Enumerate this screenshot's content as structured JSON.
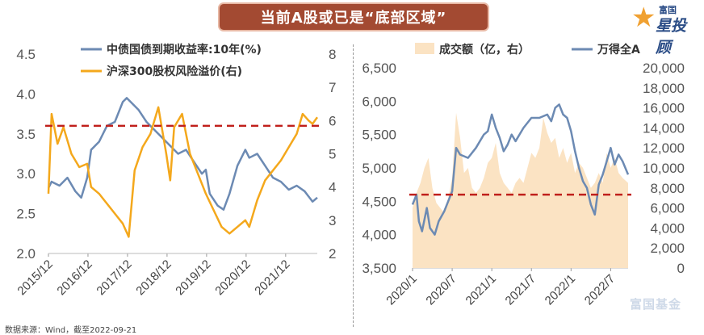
{
  "title": "当前A股或已是“底部区域”",
  "logo": {
    "top": "富国",
    "main": "星投顾"
  },
  "source": "数据来源：Wind，截至2022-09-21",
  "watermark": "富国基金",
  "colors": {
    "blue": "#6c8ab3",
    "orange": "#f4a81c",
    "volume": "#fbe3c3",
    "red_dash": "#c0201c",
    "banner": "#a34a32"
  },
  "chart_data": [
    {
      "type": "line",
      "left_axis": {
        "ylim": [
          2.0,
          4.5
        ],
        "ticks": [
          "2.0",
          "2.5",
          "3.0",
          "3.5",
          "4.0",
          "4.5"
        ]
      },
      "right_axis": {
        "ylim": [
          2,
          8
        ],
        "ticks": [
          "2",
          "3",
          "4",
          "5",
          "6",
          "7",
          "8"
        ]
      },
      "x_ticks": [
        "2015/12",
        "2016/12",
        "2017/12",
        "2018/12",
        "2019/12",
        "2020/12",
        "2021/12"
      ],
      "x_range": [
        2015.92,
        2022.72
      ],
      "reference_line": {
        "axis": "left",
        "value": 3.6,
        "style": "dashed"
      },
      "series": [
        {
          "name": "中债国债到期收益率:10年(%)",
          "axis": "left",
          "color": "#6c8ab3",
          "x": [
            2015.92,
            2016.0,
            2016.2,
            2016.4,
            2016.6,
            2016.75,
            2016.9,
            2017.0,
            2017.2,
            2017.4,
            2017.6,
            2017.8,
            2017.9,
            2018.0,
            2018.2,
            2018.4,
            2018.6,
            2018.8,
            2019.0,
            2019.2,
            2019.4,
            2019.6,
            2019.8,
            2019.9,
            2020.0,
            2020.2,
            2020.35,
            2020.5,
            2020.7,
            2020.9,
            2021.0,
            2021.2,
            2021.4,
            2021.6,
            2021.8,
            2022.0,
            2022.2,
            2022.4,
            2022.6,
            2022.72
          ],
          "values": [
            2.82,
            2.9,
            2.85,
            2.95,
            2.78,
            2.7,
            2.95,
            3.3,
            3.4,
            3.6,
            3.65,
            3.9,
            3.95,
            3.9,
            3.8,
            3.65,
            3.55,
            3.45,
            3.35,
            3.25,
            3.3,
            3.15,
            3.0,
            3.05,
            2.75,
            2.6,
            2.55,
            2.75,
            3.1,
            3.3,
            3.2,
            3.25,
            3.1,
            2.95,
            2.9,
            2.8,
            2.85,
            2.78,
            2.65,
            2.7
          ]
        },
        {
          "name": "沪深300股权风险溢价(右)",
          "axis": "right",
          "color": "#f4a81c",
          "x": [
            2015.92,
            2016.0,
            2016.15,
            2016.3,
            2016.5,
            2016.7,
            2016.9,
            2017.0,
            2017.2,
            2017.4,
            2017.6,
            2017.8,
            2017.95,
            2018.1,
            2018.3,
            2018.5,
            2018.7,
            2018.9,
            2019.0,
            2019.1,
            2019.3,
            2019.5,
            2019.7,
            2019.9,
            2020.1,
            2020.3,
            2020.5,
            2020.7,
            2020.9,
            2021.0,
            2021.2,
            2021.4,
            2021.6,
            2021.8,
            2022.0,
            2022.2,
            2022.35,
            2022.5,
            2022.6,
            2022.72
          ],
          "values": [
            3.8,
            6.2,
            5.3,
            5.8,
            5.0,
            4.6,
            4.7,
            4.0,
            3.8,
            3.5,
            3.2,
            2.9,
            2.5,
            4.5,
            5.2,
            5.6,
            6.4,
            5.0,
            4.2,
            5.8,
            6.2,
            5.0,
            4.4,
            3.8,
            3.3,
            2.8,
            2.6,
            2.8,
            3.0,
            2.8,
            3.6,
            4.2,
            4.5,
            4.8,
            5.2,
            5.6,
            6.2,
            6.0,
            5.9,
            6.1
          ]
        }
      ]
    },
    {
      "type": "line",
      "left_axis": {
        "ylim": [
          3500,
          6500
        ],
        "ticks": [
          "3,500",
          "4,000",
          "4,500",
          "5,000",
          "5,500",
          "6,000",
          "6,500"
        ]
      },
      "right_axis": {
        "ylim": [
          0,
          20000
        ],
        "ticks": [
          "0",
          "2,000",
          "4,000",
          "6,000",
          "8,000",
          "10,000",
          "12,000",
          "14,000",
          "16,000",
          "18,000",
          "20,000"
        ]
      },
      "x_ticks": [
        "2020/1",
        "2020/7",
        "2021/1",
        "2021/7",
        "2022/1",
        "2022/7"
      ],
      "x_range": [
        2020.0,
        2022.72
      ],
      "reference_line": {
        "axis": "left",
        "value": 4600,
        "style": "dashed"
      },
      "series": [
        {
          "name": "成交额（亿，右）",
          "axis": "right",
          "type": "area",
          "color": "#fbe3c3",
          "x": [
            2020.0,
            2020.05,
            2020.1,
            2020.15,
            2020.2,
            2020.25,
            2020.3,
            2020.35,
            2020.4,
            2020.45,
            2020.5,
            2020.55,
            2020.6,
            2020.65,
            2020.7,
            2020.75,
            2020.8,
            2020.85,
            2020.9,
            2020.95,
            2021.0,
            2021.05,
            2021.1,
            2021.15,
            2021.2,
            2021.25,
            2021.3,
            2021.35,
            2021.4,
            2021.45,
            2021.5,
            2021.55,
            2021.6,
            2021.65,
            2021.7,
            2021.75,
            2021.8,
            2021.85,
            2021.9,
            2021.95,
            2022.0,
            2022.05,
            2022.1,
            2022.15,
            2022.2,
            2022.25,
            2022.3,
            2022.35,
            2022.4,
            2022.45,
            2022.5,
            2022.55,
            2022.6,
            2022.65,
            2022.72
          ],
          "values": [
            6000,
            7500,
            8500,
            10000,
            11000,
            8000,
            6500,
            6000,
            5500,
            7000,
            9000,
            15500,
            13000,
            9500,
            10000,
            8000,
            7500,
            8000,
            9000,
            10500,
            11000,
            12500,
            9500,
            8500,
            8000,
            7500,
            8500,
            9000,
            8500,
            10000,
            11500,
            11000,
            12000,
            15000,
            13500,
            12500,
            13000,
            11000,
            12000,
            10500,
            11500,
            9500,
            10500,
            10000,
            9000,
            8000,
            8500,
            9500,
            8500,
            11500,
            10000,
            11000,
            9500,
            9000,
            8500
          ]
        },
        {
          "name": "万得全A",
          "axis": "left",
          "type": "line",
          "color": "#6c8ab3",
          "x": [
            2020.0,
            2020.05,
            2020.08,
            2020.12,
            2020.18,
            2020.22,
            2020.28,
            2020.33,
            2020.4,
            2020.45,
            2020.5,
            2020.55,
            2020.6,
            2020.7,
            2020.8,
            2020.9,
            2020.95,
            2021.0,
            2021.05,
            2021.1,
            2021.15,
            2021.2,
            2021.25,
            2021.3,
            2021.35,
            2021.4,
            2021.5,
            2021.6,
            2021.7,
            2021.75,
            2021.8,
            2021.85,
            2021.9,
            2021.95,
            2022.0,
            2022.05,
            2022.1,
            2022.15,
            2022.2,
            2022.25,
            2022.3,
            2022.35,
            2022.4,
            2022.45,
            2022.5,
            2022.55,
            2022.6,
            2022.65,
            2022.72
          ],
          "values": [
            4450,
            4600,
            4200,
            4050,
            4400,
            4100,
            4000,
            4200,
            4350,
            4500,
            4650,
            5300,
            5200,
            5150,
            5300,
            5500,
            5550,
            5800,
            5600,
            5450,
            5250,
            5350,
            5500,
            5400,
            5500,
            5600,
            5750,
            5750,
            5800,
            5700,
            5900,
            5950,
            5800,
            5750,
            5550,
            5250,
            5000,
            4800,
            4700,
            4450,
            4300,
            4750,
            4900,
            5100,
            5300,
            5050,
            5200,
            5100,
            4900
          ]
        }
      ]
    }
  ]
}
